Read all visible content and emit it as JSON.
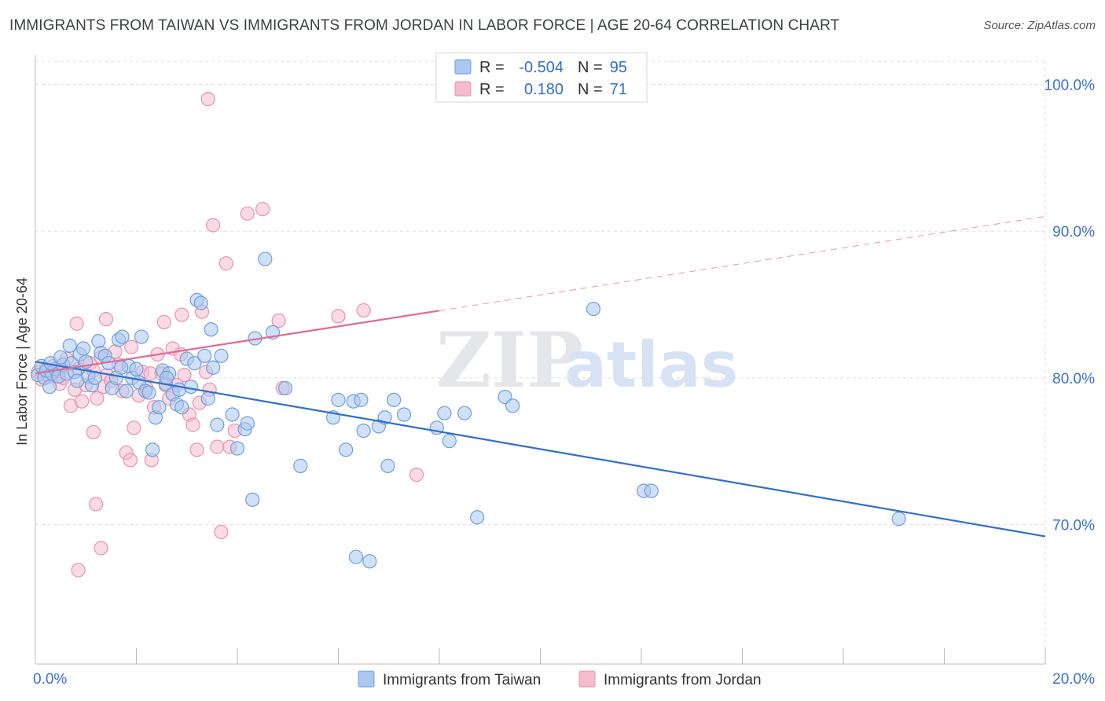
{
  "title": "IMMIGRANTS FROM TAIWAN VS IMMIGRANTS FROM JORDAN IN LABOR FORCE | AGE 20-64 CORRELATION CHART",
  "source": "Source: ZipAtlas.com",
  "watermark": {
    "zip": "ZIP",
    "atlas": "atlas"
  },
  "colors": {
    "taiwan_fill": "#aac8f0",
    "taiwan_stroke": "#6f9edc",
    "taiwan_line": "#2f6fcc",
    "jordan_fill": "#f6bccd",
    "jordan_stroke": "#e792b0",
    "jordan_line": "#e06b93",
    "tick_text": "#3a6fcc",
    "grid": "#dcdcdc"
  },
  "legend": {
    "rows": [
      {
        "r_label": "R =",
        "r_value": "-0.504",
        "n_label": "N =",
        "n_value": "95"
      },
      {
        "r_label": "R =",
        "r_value": "0.180",
        "n_label": "N =",
        "n_value": "71"
      }
    ]
  },
  "chart_data": {
    "type": "scatter",
    "title": "IMMIGRANTS FROM TAIWAN VS IMMIGRANTS FROM JORDAN IN LABOR FORCE | AGE 20-64 CORRELATION CHART",
    "xlabel": "",
    "ylabel": "In Labor Force | Age 20-64",
    "xlim": [
      0,
      20
    ],
    "ylim": [
      60.5,
      102
    ],
    "x_tick_labels": [
      "0.0%",
      "20.0%"
    ],
    "x_tick_label_values": [
      0,
      20
    ],
    "y_ticks": [
      70,
      80,
      90,
      100
    ],
    "y_tick_labels": [
      "70.0%",
      "80.0%",
      "90.0%",
      "100.0%"
    ],
    "grid": true,
    "legend_position": "top-center",
    "series": [
      {
        "name": "Immigrants from Taiwan",
        "r": -0.504,
        "n": 95,
        "trend": {
          "x": [
            0,
            20
          ],
          "y": [
            81.1,
            69.2
          ],
          "dashed_from": null
        },
        "points": [
          [
            0.05,
            80.2
          ],
          [
            0.12,
            80.8
          ],
          [
            0.18,
            80.0
          ],
          [
            0.22,
            80.5
          ],
          [
            0.28,
            79.4
          ],
          [
            0.33,
            80.3
          ],
          [
            0.4,
            80.6
          ],
          [
            0.46,
            80.1
          ],
          [
            0.55,
            80.9
          ],
          [
            0.62,
            80.3
          ],
          [
            0.68,
            82.2
          ],
          [
            0.72,
            81.0
          ],
          [
            0.78,
            80.4
          ],
          [
            0.83,
            79.8
          ],
          [
            0.88,
            81.6
          ],
          [
            0.95,
            82.0
          ],
          [
            1.0,
            81.1
          ],
          [
            1.05,
            80.1
          ],
          [
            1.12,
            79.5
          ],
          [
            1.18,
            80.0
          ],
          [
            1.25,
            82.5
          ],
          [
            1.3,
            81.7
          ],
          [
            1.38,
            81.5
          ],
          [
            1.45,
            81.0
          ],
          [
            1.52,
            79.3
          ],
          [
            1.6,
            80.0
          ],
          [
            1.65,
            82.6
          ],
          [
            1.72,
            82.8
          ],
          [
            1.8,
            79.1
          ],
          [
            1.85,
            80.8
          ],
          [
            1.92,
            80.0
          ],
          [
            2.0,
            80.6
          ],
          [
            2.05,
            79.7
          ],
          [
            2.1,
            82.8
          ],
          [
            2.18,
            79.1
          ],
          [
            2.25,
            79.0
          ],
          [
            2.32,
            75.1
          ],
          [
            2.38,
            77.3
          ],
          [
            2.45,
            78.0
          ],
          [
            2.52,
            80.5
          ],
          [
            2.58,
            79.6
          ],
          [
            2.65,
            80.3
          ],
          [
            2.72,
            78.9
          ],
          [
            2.8,
            78.2
          ],
          [
            2.85,
            79.2
          ],
          [
            2.9,
            78.0
          ],
          [
            3.0,
            81.3
          ],
          [
            3.08,
            79.4
          ],
          [
            3.15,
            81.0
          ],
          [
            3.2,
            85.3
          ],
          [
            3.28,
            85.1
          ],
          [
            3.35,
            81.5
          ],
          [
            3.42,
            78.6
          ],
          [
            3.48,
            83.3
          ],
          [
            3.52,
            80.7
          ],
          [
            3.6,
            76.8
          ],
          [
            3.68,
            81.5
          ],
          [
            3.9,
            77.5
          ],
          [
            4.0,
            75.2
          ],
          [
            4.15,
            76.5
          ],
          [
            4.2,
            76.9
          ],
          [
            4.3,
            71.7
          ],
          [
            4.35,
            82.7
          ],
          [
            4.55,
            88.1
          ],
          [
            4.7,
            83.1
          ],
          [
            4.95,
            79.3
          ],
          [
            5.25,
            74.0
          ],
          [
            5.9,
            77.3
          ],
          [
            6.0,
            78.5
          ],
          [
            6.15,
            75.1
          ],
          [
            6.3,
            78.4
          ],
          [
            6.35,
            67.8
          ],
          [
            6.45,
            78.5
          ],
          [
            6.5,
            76.4
          ],
          [
            6.62,
            67.5
          ],
          [
            6.8,
            76.7
          ],
          [
            6.92,
            77.3
          ],
          [
            6.98,
            74.0
          ],
          [
            7.1,
            78.5
          ],
          [
            7.3,
            77.5
          ],
          [
            7.95,
            76.6
          ],
          [
            8.1,
            77.6
          ],
          [
            8.2,
            75.7
          ],
          [
            8.5,
            77.6
          ],
          [
            8.75,
            70.5
          ],
          [
            9.3,
            78.7
          ],
          [
            9.45,
            78.1
          ],
          [
            11.05,
            84.7
          ],
          [
            12.05,
            72.3
          ],
          [
            12.2,
            72.3
          ],
          [
            17.1,
            70.4
          ],
          [
            0.3,
            81.0
          ],
          [
            0.5,
            81.4
          ],
          [
            1.7,
            80.7
          ],
          [
            2.6,
            80.0
          ]
        ]
      },
      {
        "name": "Immigrants from Jordan",
        "r": 0.18,
        "n": 71,
        "trend": {
          "x": [
            0,
            20
          ],
          "y": [
            80.3,
            91.0
          ],
          "dashed_from": 8.0
        },
        "points": [
          [
            0.05,
            80.4
          ],
          [
            0.12,
            79.9
          ],
          [
            0.2,
            80.5
          ],
          [
            0.28,
            80.1
          ],
          [
            0.35,
            80.8
          ],
          [
            0.42,
            80.2
          ],
          [
            0.48,
            79.6
          ],
          [
            0.55,
            80.0
          ],
          [
            0.62,
            81.3
          ],
          [
            0.7,
            78.1
          ],
          [
            0.78,
            79.2
          ],
          [
            0.85,
            80.6
          ],
          [
            0.92,
            78.4
          ],
          [
            1.0,
            79.5
          ],
          [
            1.08,
            81.0
          ],
          [
            1.15,
            80.5
          ],
          [
            1.22,
            78.6
          ],
          [
            1.3,
            81.4
          ],
          [
            1.35,
            79.4
          ],
          [
            1.42,
            80.2
          ],
          [
            1.5,
            79.8
          ],
          [
            1.58,
            81.8
          ],
          [
            1.65,
            80.9
          ],
          [
            1.72,
            79.1
          ],
          [
            1.8,
            74.9
          ],
          [
            1.88,
            74.4
          ],
          [
            1.95,
            76.6
          ],
          [
            2.05,
            78.8
          ],
          [
            2.12,
            80.4
          ],
          [
            2.2,
            79.3
          ],
          [
            2.28,
            80.3
          ],
          [
            2.35,
            78.0
          ],
          [
            2.42,
            81.6
          ],
          [
            2.5,
            80.3
          ],
          [
            2.58,
            79.5
          ],
          [
            2.65,
            78.6
          ],
          [
            2.72,
            82.0
          ],
          [
            2.8,
            79.5
          ],
          [
            2.88,
            81.6
          ],
          [
            2.95,
            80.2
          ],
          [
            3.05,
            77.5
          ],
          [
            3.12,
            76.8
          ],
          [
            3.2,
            75.1
          ],
          [
            3.25,
            78.3
          ],
          [
            3.3,
            84.5
          ],
          [
            3.38,
            80.4
          ],
          [
            3.45,
            79.2
          ],
          [
            3.52,
            90.4
          ],
          [
            3.6,
            75.3
          ],
          [
            3.68,
            69.5
          ],
          [
            3.78,
            87.8
          ],
          [
            3.85,
            75.3
          ],
          [
            3.95,
            76.4
          ],
          [
            4.2,
            91.2
          ],
          [
            4.5,
            91.5
          ],
          [
            4.82,
            83.9
          ],
          [
            4.9,
            79.3
          ],
          [
            6.0,
            84.2
          ],
          [
            6.5,
            84.6
          ],
          [
            7.55,
            73.4
          ],
          [
            3.42,
            99.0
          ],
          [
            1.9,
            82.1
          ],
          [
            1.4,
            84.0
          ],
          [
            0.82,
            83.7
          ],
          [
            1.15,
            76.3
          ],
          [
            1.2,
            71.4
          ],
          [
            1.3,
            68.4
          ],
          [
            0.85,
            66.9
          ],
          [
            2.3,
            74.4
          ],
          [
            2.55,
            83.8
          ],
          [
            2.9,
            84.3
          ]
        ]
      }
    ]
  },
  "bottom_legend": [
    {
      "label": "Immigrants from Taiwan"
    },
    {
      "label": "Immigrants from Jordan"
    }
  ]
}
